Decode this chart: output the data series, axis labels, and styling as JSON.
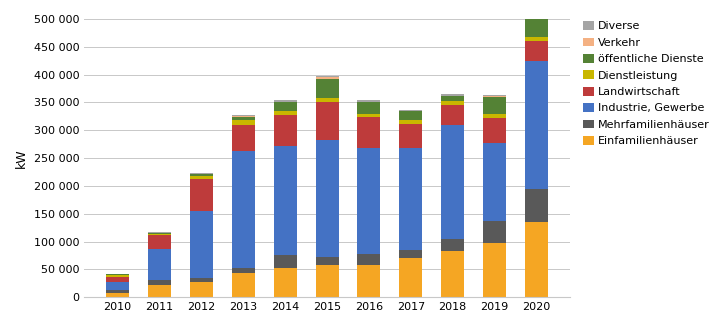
{
  "years": [
    "2010",
    "2011",
    "2012",
    "2013",
    "2014",
    "2015",
    "2016",
    "2017",
    "2018",
    "2019",
    "2020"
  ],
  "categories": [
    "Einfamilienhäuser",
    "Mehrfamilienhäuser",
    "Industrie, Gewerbe",
    "Landwirtschaft",
    "Dienstleistung",
    "öffentliche Dienste",
    "Verkehr",
    "Diverse"
  ],
  "colors": [
    "#F5A623",
    "#595959",
    "#4472C4",
    "#BE3B3B",
    "#C9B700",
    "#548235",
    "#F4B183",
    "#A5A5A5"
  ],
  "values": {
    "Einfamilienhäuser": [
      8000,
      22000,
      27000,
      43000,
      53000,
      57000,
      58000,
      70000,
      83000,
      97000,
      135000
    ],
    "Mehrfamilienhäuser": [
      4000,
      9000,
      8000,
      10000,
      22000,
      15000,
      20000,
      15000,
      22000,
      40000,
      60000
    ],
    "Industrie, Gewerbe": [
      15000,
      55000,
      120000,
      210000,
      197000,
      210000,
      190000,
      183000,
      205000,
      140000,
      230000
    ],
    "Landwirtschaft": [
      10000,
      25000,
      58000,
      47000,
      55000,
      68000,
      55000,
      43000,
      35000,
      45000,
      35000
    ],
    "Dienstleistung": [
      2000,
      3000,
      4000,
      8000,
      8000,
      8000,
      7000,
      8000,
      8000,
      8000,
      8000
    ],
    "öffentliche Dienste": [
      2000,
      2000,
      5000,
      5000,
      15000,
      35000,
      20000,
      15000,
      8000,
      30000,
      55000
    ],
    "Verkehr": [
      0,
      0,
      0,
      2000,
      1000,
      2000,
      1000,
      1000,
      1000,
      1000,
      3000
    ],
    "Diverse": [
      1000,
      1000,
      2000,
      3000,
      3000,
      3000,
      3000,
      2000,
      3000,
      3000,
      5000
    ]
  },
  "ylabel": "kW",
  "ylim": [
    0,
    500000
  ],
  "yticks": [
    0,
    50000,
    100000,
    150000,
    200000,
    250000,
    300000,
    350000,
    400000,
    450000,
    500000
  ],
  "background_color": "#FFFFFF",
  "grid_color": "#C8C8C8"
}
